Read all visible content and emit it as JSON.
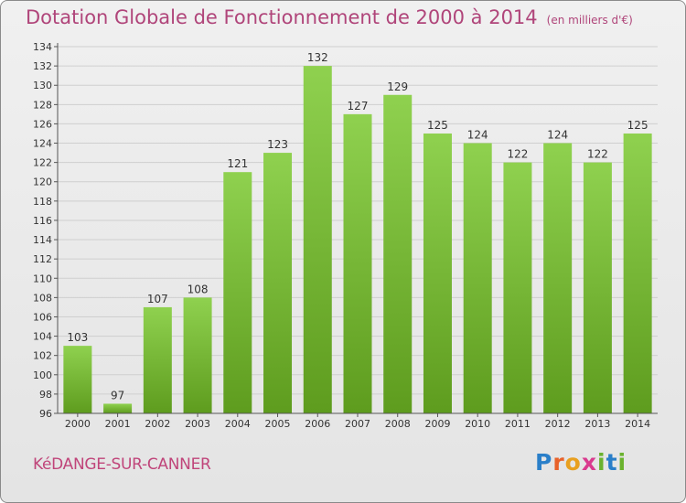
{
  "title": "Dotation Globale de Fonctionnement de 2000 à 2014",
  "unit_note": "(en milliers d'€)",
  "commune": "KéDANGE-SUR-CANNER",
  "logo": {
    "letters": [
      "P",
      "r",
      "o",
      "x",
      "i",
      "t",
      "i"
    ],
    "colors": [
      "#2a7fc9",
      "#e8622a",
      "#e8a020",
      "#d93a8e",
      "#6ab22e",
      "#2a7fc9",
      "#6ab22e"
    ]
  },
  "colors": {
    "bar_top": "#8fd14f",
    "bar_bottom": "#5e9c1e",
    "title": "#b0457a"
  },
  "chart_data": {
    "type": "bar",
    "categories": [
      "2000",
      "2001",
      "2002",
      "2003",
      "2004",
      "2005",
      "2006",
      "2007",
      "2008",
      "2009",
      "2010",
      "2011",
      "2012",
      "2013",
      "2014"
    ],
    "values": [
      103,
      97,
      107,
      108,
      121,
      123,
      132,
      127,
      129,
      125,
      124,
      122,
      124,
      122,
      125
    ],
    "ylim": [
      96,
      134
    ],
    "yticks": [
      96,
      98,
      100,
      102,
      104,
      106,
      108,
      110,
      112,
      114,
      116,
      118,
      120,
      122,
      124,
      126,
      128,
      130,
      132,
      134
    ],
    "grid": true
  }
}
